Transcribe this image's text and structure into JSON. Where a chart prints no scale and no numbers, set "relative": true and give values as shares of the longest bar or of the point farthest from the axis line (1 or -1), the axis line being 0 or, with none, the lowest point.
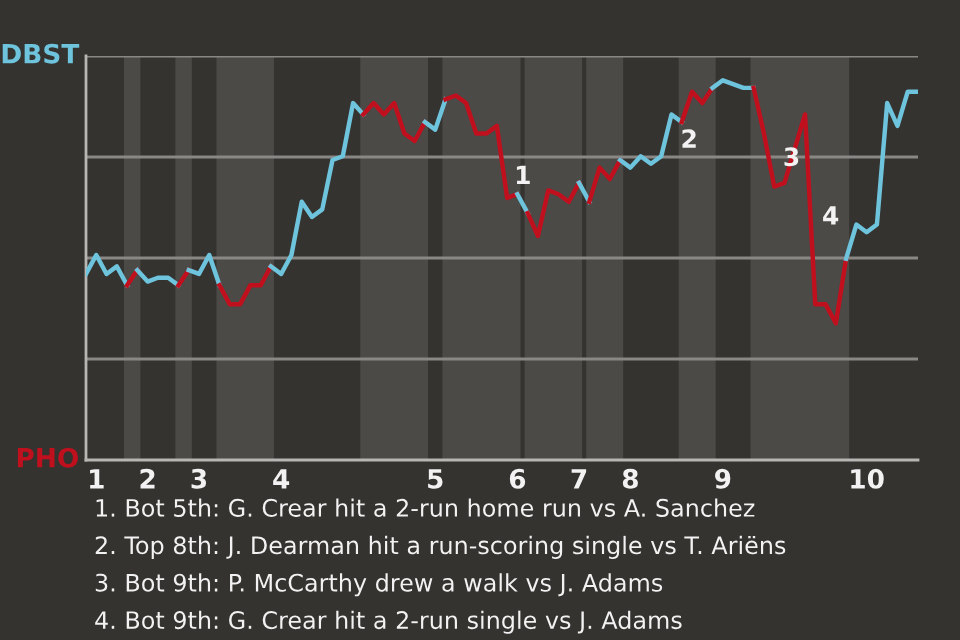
{
  "chart_data": {
    "type": "line",
    "relative": true,
    "categories": [
      null,
      "1",
      null,
      null,
      null,
      null,
      "2",
      null,
      null,
      null,
      null,
      "3",
      null,
      null,
      null,
      null,
      null,
      null,
      null,
      "4",
      null,
      null,
      null,
      null,
      null,
      null,
      null,
      null,
      null,
      null,
      null,
      null,
      null,
      null,
      "5",
      null,
      null,
      null,
      null,
      null,
      null,
      null,
      "6",
      null,
      null,
      null,
      null,
      null,
      "7",
      null,
      null,
      null,
      null,
      "8",
      null,
      null,
      null,
      null,
      null,
      null,
      null,
      null,
      "9",
      null,
      null,
      null,
      null,
      null,
      null,
      null,
      null,
      null,
      null,
      null,
      null,
      null,
      "10",
      null,
      null,
      null,
      null,
      null
    ],
    "grid": "y",
    "legend": false,
    "marker": "none",
    "line_style": "solid",
    "series": [
      {
        "name": "DBST",
        "color": "#6ec4dc",
        "values": [
          0.49,
          0.54,
          0.49,
          0.51,
          0.46,
          null,
          null,
          null,
          null,
          null,
          null,
          null,
          null,
          null,
          null,
          null,
          null,
          null,
          null,
          null,
          null,
          null,
          null,
          null,
          null,
          null,
          null,
          null,
          null,
          null,
          null,
          null,
          null,
          null,
          null,
          null,
          null,
          null,
          null,
          null,
          null,
          null,
          null,
          null,
          null,
          null,
          null,
          null,
          null,
          null,
          null,
          null,
          null,
          null,
          null,
          null,
          null,
          null,
          null,
          null,
          null,
          null,
          null,
          null,
          null,
          null,
          null,
          null,
          null,
          null,
          null,
          null,
          null,
          null,
          null,
          null,
          null,
          null,
          null,
          null,
          null,
          null
        ]
      },
      {
        "name": "PHO",
        "color": "#c0101e",
        "values": [
          null,
          null,
          null,
          null,
          0.46,
          0.5,
          null,
          null,
          null,
          null,
          null,
          null,
          null,
          null,
          null,
          null,
          null,
          null,
          null,
          null,
          null,
          null,
          null,
          null,
          null,
          null,
          null,
          null,
          null,
          null,
          null,
          null,
          null,
          null,
          null,
          null,
          null,
          null,
          null,
          null,
          null,
          null,
          null,
          null,
          null,
          null,
          null,
          null,
          null,
          null,
          null,
          null,
          null,
          null,
          null,
          null,
          null,
          null,
          null,
          null,
          null,
          null,
          null,
          null,
          null,
          null,
          null,
          null,
          null,
          null,
          null,
          null,
          null,
          null,
          null,
          null,
          null,
          null,
          null,
          null,
          null,
          null
        ]
      },
      {
        "color": "#6ec4dc",
        "values": [
          null,
          null,
          null,
          null,
          null,
          0.5,
          0.47,
          0.48,
          0.48,
          0.46,
          null,
          null,
          null,
          null,
          null,
          null,
          null,
          null,
          null,
          null,
          null,
          null,
          null,
          null,
          null,
          null,
          null,
          null,
          null,
          null,
          null,
          null,
          null,
          null,
          null,
          null,
          null,
          null,
          null,
          null,
          null,
          null,
          null,
          null,
          null,
          null,
          null,
          null,
          null,
          null,
          null,
          null,
          null,
          null,
          null,
          null,
          null,
          null,
          null,
          null,
          null,
          null,
          null,
          null,
          null,
          null,
          null,
          null,
          null,
          null,
          null,
          null,
          null,
          null,
          null,
          null,
          null,
          null,
          null,
          null,
          null,
          null
        ]
      },
      {
        "color": "#c0101e",
        "values": [
          null,
          null,
          null,
          null,
          null,
          null,
          null,
          null,
          null,
          0.46,
          0.5,
          null,
          null,
          null,
          null,
          null,
          null,
          null,
          null,
          null,
          null,
          null,
          null,
          null,
          null,
          null,
          null,
          null,
          null,
          null,
          null,
          null,
          null,
          null,
          null,
          null,
          null,
          null,
          null,
          null,
          null,
          null,
          null,
          null,
          null,
          null,
          null,
          null,
          null,
          null,
          null,
          null,
          null,
          null,
          null,
          null,
          null,
          null,
          null,
          null,
          null,
          null,
          null,
          null,
          null,
          null,
          null,
          null,
          null,
          null,
          null,
          null,
          null,
          null,
          null,
          null,
          null,
          null,
          null,
          null,
          null,
          null
        ]
      },
      {
        "color": "#6ec4dc",
        "values": [
          null,
          null,
          null,
          null,
          null,
          null,
          null,
          null,
          null,
          null,
          0.5,
          0.49,
          0.54,
          0.46,
          null,
          null,
          null,
          null,
          null,
          null,
          null,
          null,
          null,
          null,
          null,
          null,
          null,
          null,
          null,
          null,
          null,
          null,
          null,
          null,
          null,
          null,
          null,
          null,
          null,
          null,
          null,
          null,
          null,
          null,
          null,
          null,
          null,
          null,
          null,
          null,
          null,
          null,
          null,
          null,
          null,
          null,
          null,
          null,
          null,
          null,
          null,
          null,
          null,
          null,
          null,
          null,
          null,
          null,
          null,
          null,
          null,
          null,
          null,
          null,
          null,
          null,
          null,
          null,
          null,
          null,
          null,
          null
        ]
      },
      {
        "color": "#c0101e",
        "values": [
          null,
          null,
          null,
          null,
          null,
          null,
          null,
          null,
          null,
          null,
          null,
          null,
          null,
          0.46,
          0.41,
          0.41,
          0.46,
          0.46,
          0.51,
          null,
          null,
          null,
          null,
          null,
          null,
          null,
          null,
          null,
          null,
          null,
          null,
          null,
          null,
          null,
          null,
          null,
          null,
          null,
          null,
          null,
          null,
          null,
          null,
          null,
          null,
          null,
          null,
          null,
          null,
          null,
          null,
          null,
          null,
          null,
          null,
          null,
          null,
          null,
          null,
          null,
          null,
          null,
          null,
          null,
          null,
          null,
          null,
          null,
          null,
          null,
          null,
          null,
          null,
          null,
          null,
          null,
          null,
          null,
          null,
          null,
          null,
          null
        ]
      },
      {
        "color": "#6ec4dc",
        "values": [
          null,
          null,
          null,
          null,
          null,
          null,
          null,
          null,
          null,
          null,
          null,
          null,
          null,
          null,
          null,
          null,
          null,
          null,
          0.51,
          0.49,
          0.54,
          0.68,
          0.64,
          0.66,
          0.79,
          0.8,
          0.94,
          0.91,
          null,
          null,
          null,
          null,
          null,
          null,
          null,
          null,
          null,
          null,
          null,
          null,
          null,
          null,
          null,
          null,
          null,
          null,
          null,
          null,
          null,
          null,
          null,
          null,
          null,
          null,
          null,
          null,
          null,
          null,
          null,
          null,
          null,
          null,
          null,
          null,
          null,
          null,
          null,
          null,
          null,
          null,
          null,
          null,
          null,
          null,
          null,
          null,
          null,
          null,
          null,
          null,
          null,
          null
        ]
      },
      {
        "color": "#c0101e",
        "values": [
          null,
          null,
          null,
          null,
          null,
          null,
          null,
          null,
          null,
          null,
          null,
          null,
          null,
          null,
          null,
          null,
          null,
          null,
          null,
          null,
          null,
          null,
          null,
          null,
          null,
          null,
          null,
          0.91,
          0.94,
          0.91,
          0.94,
          0.86,
          0.84,
          0.89,
          null,
          null,
          null,
          null,
          null,
          null,
          null,
          null,
          null,
          null,
          null,
          null,
          null,
          null,
          null,
          null,
          null,
          null,
          null,
          null,
          null,
          null,
          null,
          null,
          null,
          null,
          null,
          null,
          null,
          null,
          null,
          null,
          null,
          null,
          null,
          null,
          null,
          null,
          null,
          null,
          null,
          null,
          null,
          null,
          null,
          null,
          null,
          null
        ]
      },
      {
        "color": "#6ec4dc",
        "values": [
          null,
          null,
          null,
          null,
          null,
          null,
          null,
          null,
          null,
          null,
          null,
          null,
          null,
          null,
          null,
          null,
          null,
          null,
          null,
          null,
          null,
          null,
          null,
          null,
          null,
          null,
          null,
          null,
          null,
          null,
          null,
          null,
          null,
          0.89,
          0.87,
          0.95,
          null,
          null,
          null,
          null,
          null,
          null,
          null,
          null,
          null,
          null,
          null,
          null,
          null,
          null,
          null,
          null,
          null,
          null,
          null,
          null,
          null,
          null,
          null,
          null,
          null,
          null,
          null,
          null,
          null,
          null,
          null,
          null,
          null,
          null,
          null,
          null,
          null,
          null,
          null,
          null,
          null,
          null,
          null,
          null,
          null,
          null
        ]
      },
      {
        "color": "#c0101e",
        "values": [
          null,
          null,
          null,
          null,
          null,
          null,
          null,
          null,
          null,
          null,
          null,
          null,
          null,
          null,
          null,
          null,
          null,
          null,
          null,
          null,
          null,
          null,
          null,
          null,
          null,
          null,
          null,
          null,
          null,
          null,
          null,
          null,
          null,
          null,
          null,
          0.95,
          0.96,
          0.94,
          0.86,
          0.86,
          0.88,
          0.69,
          0.7,
          null,
          null,
          null,
          null,
          null,
          null,
          null,
          null,
          null,
          null,
          null,
          null,
          null,
          null,
          null,
          null,
          null,
          null,
          null,
          null,
          null,
          null,
          null,
          null,
          null,
          null,
          null,
          null,
          null,
          null,
          null,
          null,
          null,
          null,
          null,
          null,
          null,
          null,
          null
        ]
      },
      {
        "color": "#6ec4dc",
        "values": [
          null,
          null,
          null,
          null,
          null,
          null,
          null,
          null,
          null,
          null,
          null,
          null,
          null,
          null,
          null,
          null,
          null,
          null,
          null,
          null,
          null,
          null,
          null,
          null,
          null,
          null,
          null,
          null,
          null,
          null,
          null,
          null,
          null,
          null,
          null,
          null,
          null,
          null,
          null,
          null,
          null,
          null,
          0.7,
          0.65,
          null,
          null,
          null,
          null,
          null,
          null,
          null,
          null,
          null,
          null,
          null,
          null,
          null,
          null,
          null,
          null,
          null,
          null,
          null,
          null,
          null,
          null,
          null,
          null,
          null,
          null,
          null,
          null,
          null,
          null,
          null,
          null,
          null,
          null,
          null,
          null,
          null,
          null
        ]
      },
      {
        "color": "#c0101e",
        "values": [
          null,
          null,
          null,
          null,
          null,
          null,
          null,
          null,
          null,
          null,
          null,
          null,
          null,
          null,
          null,
          null,
          null,
          null,
          null,
          null,
          null,
          null,
          null,
          null,
          null,
          null,
          null,
          null,
          null,
          null,
          null,
          null,
          null,
          null,
          null,
          null,
          null,
          null,
          null,
          null,
          null,
          null,
          null,
          0.65,
          0.59,
          0.71,
          0.7,
          0.68,
          0.73,
          null,
          null,
          null,
          null,
          null,
          null,
          null,
          null,
          null,
          null,
          null,
          null,
          null,
          null,
          null,
          null,
          null,
          null,
          null,
          null,
          null,
          null,
          null,
          null,
          null,
          null,
          null,
          null,
          null,
          null,
          null,
          null,
          null
        ]
      },
      {
        "color": "#6ec4dc",
        "values": [
          null,
          null,
          null,
          null,
          null,
          null,
          null,
          null,
          null,
          null,
          null,
          null,
          null,
          null,
          null,
          null,
          null,
          null,
          null,
          null,
          null,
          null,
          null,
          null,
          null,
          null,
          null,
          null,
          null,
          null,
          null,
          null,
          null,
          null,
          null,
          null,
          null,
          null,
          null,
          null,
          null,
          null,
          null,
          null,
          null,
          null,
          null,
          null,
          0.73,
          0.68,
          null,
          null,
          null,
          null,
          null,
          null,
          null,
          null,
          null,
          null,
          null,
          null,
          null,
          null,
          null,
          null,
          null,
          null,
          null,
          null,
          null,
          null,
          null,
          null,
          null,
          null,
          null,
          null,
          null,
          null,
          null,
          null
        ]
      },
      {
        "color": "#c0101e",
        "values": [
          null,
          null,
          null,
          null,
          null,
          null,
          null,
          null,
          null,
          null,
          null,
          null,
          null,
          null,
          null,
          null,
          null,
          null,
          null,
          null,
          null,
          null,
          null,
          null,
          null,
          null,
          null,
          null,
          null,
          null,
          null,
          null,
          null,
          null,
          null,
          null,
          null,
          null,
          null,
          null,
          null,
          null,
          null,
          null,
          null,
          null,
          null,
          null,
          null,
          0.68,
          0.77,
          0.74,
          0.79,
          null,
          null,
          null,
          null,
          null,
          null,
          null,
          null,
          null,
          null,
          null,
          null,
          null,
          null,
          null,
          null,
          null,
          null,
          null,
          null,
          null,
          null,
          null,
          null,
          null,
          null,
          null,
          null,
          null
        ]
      },
      {
        "color": "#6ec4dc",
        "values": [
          null,
          null,
          null,
          null,
          null,
          null,
          null,
          null,
          null,
          null,
          null,
          null,
          null,
          null,
          null,
          null,
          null,
          null,
          null,
          null,
          null,
          null,
          null,
          null,
          null,
          null,
          null,
          null,
          null,
          null,
          null,
          null,
          null,
          null,
          null,
          null,
          null,
          null,
          null,
          null,
          null,
          null,
          null,
          null,
          null,
          null,
          null,
          null,
          null,
          null,
          null,
          null,
          0.79,
          0.77,
          0.8,
          0.78,
          0.8,
          0.91,
          0.89,
          null,
          null,
          null,
          null,
          null,
          null,
          null,
          null,
          null,
          null,
          null,
          null,
          null,
          null,
          null,
          null,
          null,
          null,
          null,
          null,
          null,
          null,
          null
        ]
      },
      {
        "color": "#c0101e",
        "values": [
          null,
          null,
          null,
          null,
          null,
          null,
          null,
          null,
          null,
          null,
          null,
          null,
          null,
          null,
          null,
          null,
          null,
          null,
          null,
          null,
          null,
          null,
          null,
          null,
          null,
          null,
          null,
          null,
          null,
          null,
          null,
          null,
          null,
          null,
          null,
          null,
          null,
          null,
          null,
          null,
          null,
          null,
          null,
          null,
          null,
          null,
          null,
          null,
          null,
          null,
          null,
          null,
          null,
          null,
          null,
          null,
          null,
          null,
          0.89,
          0.97,
          0.94,
          0.98,
          null,
          null,
          null,
          null,
          null,
          null,
          null,
          null,
          null,
          null,
          null,
          null,
          null,
          null,
          null,
          null,
          null,
          null,
          null,
          null
        ]
      },
      {
        "color": "#6ec4dc",
        "values": [
          null,
          null,
          null,
          null,
          null,
          null,
          null,
          null,
          null,
          null,
          null,
          null,
          null,
          null,
          null,
          null,
          null,
          null,
          null,
          null,
          null,
          null,
          null,
          null,
          null,
          null,
          null,
          null,
          null,
          null,
          null,
          null,
          null,
          null,
          null,
          null,
          null,
          null,
          null,
          null,
          null,
          null,
          null,
          null,
          null,
          null,
          null,
          null,
          null,
          null,
          null,
          null,
          null,
          null,
          null,
          null,
          null,
          null,
          null,
          null,
          null,
          0.98,
          1,
          0.99,
          0.98,
          0.98,
          null,
          null,
          null,
          null,
          null,
          null,
          null,
          null,
          null,
          null,
          null,
          null,
          null,
          null,
          null,
          null
        ]
      },
      {
        "color": "#c0101e",
        "values": [
          null,
          null,
          null,
          null,
          null,
          null,
          null,
          null,
          null,
          null,
          null,
          null,
          null,
          null,
          null,
          null,
          null,
          null,
          null,
          null,
          null,
          null,
          null,
          null,
          null,
          null,
          null,
          null,
          null,
          null,
          null,
          null,
          null,
          null,
          null,
          null,
          null,
          null,
          null,
          null,
          null,
          null,
          null,
          null,
          null,
          null,
          null,
          null,
          null,
          null,
          null,
          null,
          null,
          null,
          null,
          null,
          null,
          null,
          null,
          null,
          null,
          null,
          null,
          null,
          null,
          0.98,
          0.86,
          0.72,
          0.73,
          0.82,
          0.91,
          0.41,
          0.41,
          0.36,
          0.53,
          null,
          null,
          null,
          null,
          null,
          null,
          null
        ]
      },
      {
        "color": "#6ec4dc",
        "values": [
          null,
          null,
          null,
          null,
          null,
          null,
          null,
          null,
          null,
          null,
          null,
          null,
          null,
          null,
          null,
          null,
          null,
          null,
          null,
          null,
          null,
          null,
          null,
          null,
          null,
          null,
          null,
          null,
          null,
          null,
          null,
          null,
          null,
          null,
          null,
          null,
          null,
          null,
          null,
          null,
          null,
          null,
          null,
          null,
          null,
          null,
          null,
          null,
          null,
          null,
          null,
          null,
          null,
          null,
          null,
          null,
          null,
          null,
          null,
          null,
          null,
          null,
          null,
          null,
          null,
          null,
          null,
          null,
          null,
          null,
          null,
          null,
          null,
          null,
          0.53,
          0.62,
          0.6,
          0.62,
          0.94,
          0.88,
          0.97,
          0.97
        ]
      }
    ],
    "annotations": [
      "1",
      "2",
      "3",
      "4",
      "1. Bot 5th: G. Crear hit a 2-run home run vs A. Sanchez",
      "2. Top 8th: J. Dearman hit a run-scoring single vs T. Ariëns",
      "3. Bot 9th: P. McCarthy drew a walk vs J. Adams",
      "4. Bot 9th: G. Crear hit a 2-run single vs J. Adams"
    ]
  }
}
